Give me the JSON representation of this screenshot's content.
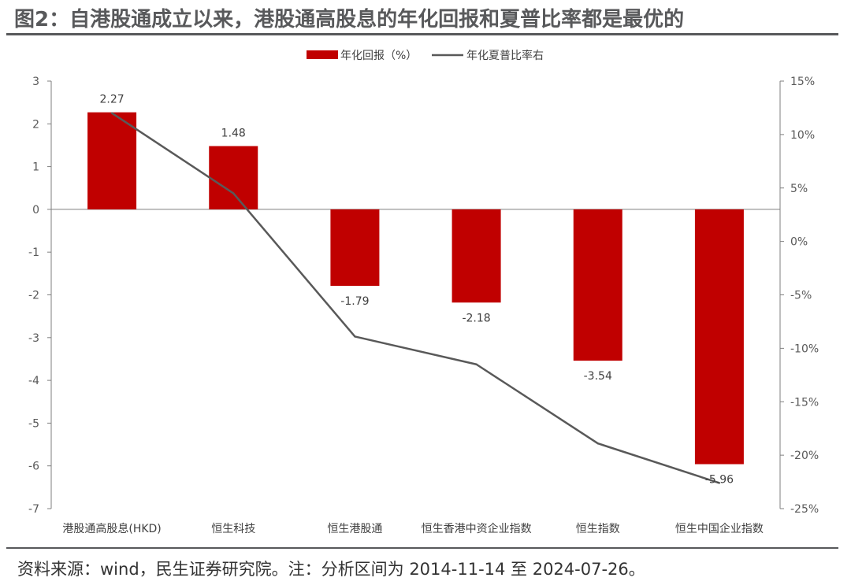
{
  "title": "图2：自港股通成立以来，港股通高股息的年化回报和夏普比率都是最优的",
  "source": "资料来源：wind，民生证券研究院。注：分析区间为 2014-11-14 至 2024-07-26。",
  "chart_data": {
    "type": "bar",
    "categories": [
      "港股通高股息(HKD)",
      "恒生科技",
      "恒生港股通",
      "恒生香港中资企业指数",
      "恒生指数",
      "恒生中国企业指数"
    ],
    "series": [
      {
        "name": "年化回报（%）",
        "type": "bar",
        "axis": "left",
        "color": "#c00000",
        "values": [
          2.27,
          1.48,
          -1.79,
          -2.18,
          -3.54,
          -5.96
        ]
      },
      {
        "name": "年化夏普比率右",
        "type": "line",
        "axis": "right",
        "color": "#595959",
        "values": [
          12.0,
          4.5,
          -8.9,
          -11.5,
          -18.9,
          -22.6
        ]
      }
    ],
    "data_labels": [
      "2.27",
      "1.48",
      "-1.79",
      "-2.18",
      "-3.54",
      "-5.96"
    ],
    "ylim": [
      -7,
      3
    ],
    "yticks": [
      "3",
      "2",
      "1",
      "0",
      "-1",
      "-2",
      "-3",
      "-4",
      "-5",
      "-6",
      "-7"
    ],
    "y2lim": [
      -25,
      15
    ],
    "y2ticks": [
      "15%",
      "10%",
      "5%",
      "0%",
      "-5%",
      "-10%",
      "-15%",
      "-20%",
      "-25%"
    ],
    "legend_position": "top-center",
    "grid": false
  }
}
